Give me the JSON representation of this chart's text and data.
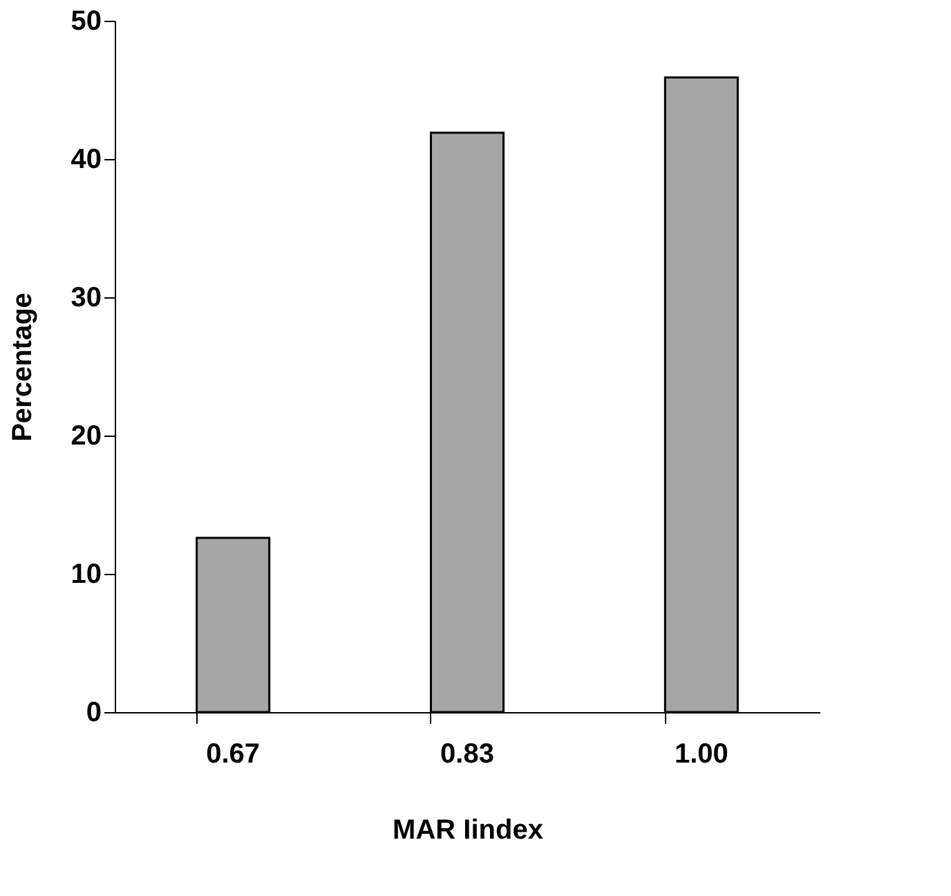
{
  "chart_data": {
    "type": "bar",
    "categories": [
      "0.67",
      "0.83",
      "1.00"
    ],
    "values": [
      12.6,
      41.9,
      45.9
    ],
    "color": "#a6a6a6",
    "xlabel": "MAR Iindex",
    "ylabel": "Percentage",
    "ylim": [
      0,
      50
    ],
    "yticks": [
      0,
      10,
      20,
      30,
      40,
      50
    ],
    "grid": false
  }
}
